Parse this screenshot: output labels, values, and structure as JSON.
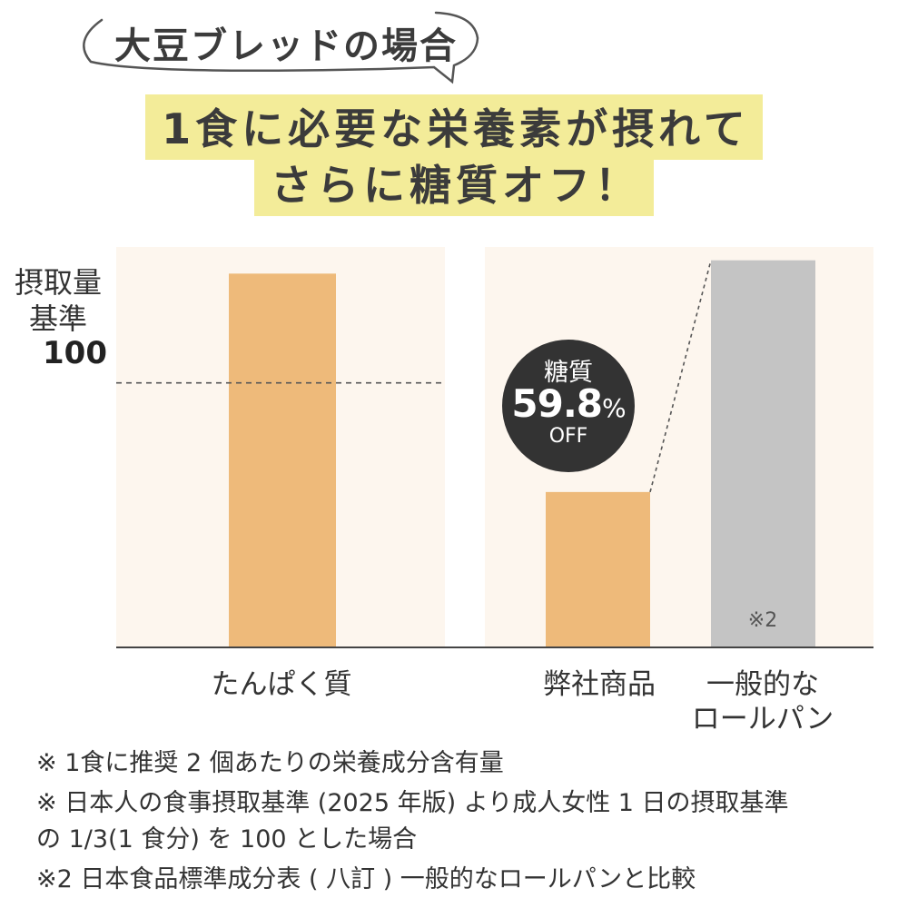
{
  "bubble_title": "大豆ブレッドの場合",
  "headline": {
    "line1": "1食に必要な栄養素が摂れて",
    "line2": "さらに糖質オフ！"
  },
  "colors": {
    "panel": "#fdf6ee",
    "bar_highlight": "#eeba7a",
    "bar_gray": "#c4c4c4",
    "headline_bg": "#f3ec99",
    "badge_bg": "#333333",
    "axis": "#444444"
  },
  "chart_data": {
    "type": "bar",
    "ylabel_lines": [
      "摂取量",
      "基準"
    ],
    "reference_line": {
      "value": 100,
      "label": "100",
      "style": "dashed"
    },
    "groups": [
      {
        "name": "たんぱく質",
        "bars": [
          {
            "label": "たんぱく質",
            "value": 140
          }
        ]
      },
      {
        "name": "糖質",
        "bars": [
          {
            "label": "弊社商品",
            "value": 58
          },
          {
            "label": "一般的なロールパン",
            "value": 145,
            "note": "※2"
          }
        ]
      }
    ],
    "annotation": {
      "top": "糖質",
      "value": "59.8",
      "unit": "%",
      "bottom": "OFF"
    },
    "categories": [
      "たんぱく質",
      "弊社商品",
      "一般的な\nロールパン"
    ],
    "ylim": [
      0,
      150
    ],
    "grid": false,
    "legend": "none"
  },
  "labels": {
    "cat_protein": "たんぱく質",
    "cat_ours": "弊社商品",
    "cat_roll_line1": "一般的な",
    "cat_roll_line2": "ロールパン",
    "bar_note": "※2"
  },
  "footnotes": [
    "※ 1食に推奨 2 個あたりの栄養成分含有量",
    "※ 日本人の食事摂取基準 (2025 年版) より成人女性 1 日の摂取基準",
    "の 1/3(1 食分) を 100 とした場合",
    "※2 日本食品標準成分表 ( 八訂 ) 一般的なロールパンと比較"
  ]
}
